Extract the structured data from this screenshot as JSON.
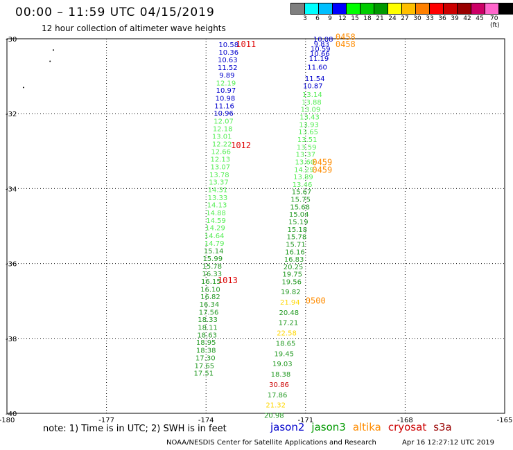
{
  "header": {
    "title": "00:00 – 11:59 UTC 04/15/2019",
    "subtitle": "12 hour collection of altimeter wave heights"
  },
  "colorbar": {
    "colors": [
      "#7f7f7f",
      "#00ffff",
      "#00bfff",
      "#0000ff",
      "#00ff00",
      "#00cc00",
      "#009900",
      "#ffff00",
      "#ffbf00",
      "#ff8000",
      "#ff0000",
      "#cc0000",
      "#990000",
      "#cc0066",
      "#ff66cc",
      "#000000"
    ],
    "tick_labels": [
      "3",
      "6",
      "9",
      "12",
      "15",
      "18",
      "21",
      "24",
      "27",
      "30",
      "33",
      "36",
      "39",
      "42",
      "45",
      "70 (ft)"
    ]
  },
  "chart_data": {
    "type": "scatter",
    "title": "00:00 – 11:59 UTC 04/15/2019",
    "subtitle": "12 hour collection of altimeter wave heights",
    "xlabel": "",
    "ylabel": "",
    "xlim": [
      -180,
      -165
    ],
    "ylim": [
      -40,
      -30
    ],
    "x_ticks": [
      "-180",
      "-177",
      "-174",
      "-171",
      "-168",
      "-165"
    ],
    "y_ticks": [
      "-30",
      "-32",
      "-34",
      "-36",
      "-38",
      "-40"
    ],
    "grid": true,
    "tracks": [
      {
        "name": "track 1",
        "time_labels": [
          {
            "text": "1011",
            "lon": -173.1,
            "lat": -30.15
          },
          {
            "text": "1012",
            "lon": -173.25,
            "lat": -32.85
          },
          {
            "text": "1013",
            "lon": -173.65,
            "lat": -36.45
          }
        ],
        "points": [
          {
            "lon": -173.32,
            "lat": -30.15,
            "value": "10.58",
            "color": "#0000cc"
          },
          {
            "lon": -173.32,
            "lat": -30.35,
            "value": "10.36",
            "color": "#0000cc"
          },
          {
            "lon": -173.35,
            "lat": -30.55,
            "value": "10.63",
            "color": "#0000cc"
          },
          {
            "lon": -173.35,
            "lat": -30.76,
            "value": "11.52",
            "color": "#0000cc"
          },
          {
            "lon": -173.37,
            "lat": -30.96,
            "value": "9.89",
            "color": "#0000cc"
          },
          {
            "lon": -173.4,
            "lat": -31.17,
            "value": "12.19",
            "color": "#55ee55"
          },
          {
            "lon": -173.4,
            "lat": -31.37,
            "value": "10.97",
            "color": "#0000cc"
          },
          {
            "lon": -173.42,
            "lat": -31.58,
            "value": "10.98",
            "color": "#0000cc"
          },
          {
            "lon": -173.45,
            "lat": -31.78,
            "value": "11.16",
            "color": "#0000cc"
          },
          {
            "lon": -173.47,
            "lat": -31.98,
            "value": "10.96",
            "color": "#0000cc"
          },
          {
            "lon": -173.47,
            "lat": -32.19,
            "value": "12.07",
            "color": "#55ee55"
          },
          {
            "lon": -173.5,
            "lat": -32.39,
            "value": "12.18",
            "color": "#55ee55"
          },
          {
            "lon": -173.52,
            "lat": -32.6,
            "value": "13.01",
            "color": "#55ee55"
          },
          {
            "lon": -173.52,
            "lat": -32.8,
            "value": "12.22",
            "color": "#55ee55"
          },
          {
            "lon": -173.55,
            "lat": -33.0,
            "value": "12.66",
            "color": "#55ee55"
          },
          {
            "lon": -173.57,
            "lat": -33.21,
            "value": "12.13",
            "color": "#55ee55"
          },
          {
            "lon": -173.57,
            "lat": -33.41,
            "value": "13.07",
            "color": "#55ee55"
          },
          {
            "lon": -173.6,
            "lat": -33.62,
            "value": "13.78",
            "color": "#55ee55"
          },
          {
            "lon": -173.62,
            "lat": -33.82,
            "value": "13.37",
            "color": "#55ee55"
          },
          {
            "lon": -173.65,
            "lat": -34.02,
            "value": "14.31",
            "color": "#55ee55"
          },
          {
            "lon": -173.65,
            "lat": -34.23,
            "value": "13.33",
            "color": "#55ee55"
          },
          {
            "lon": -173.67,
            "lat": -34.43,
            "value": "14.13",
            "color": "#55ee55"
          },
          {
            "lon": -173.7,
            "lat": -34.64,
            "value": "14.88",
            "color": "#55ee55"
          },
          {
            "lon": -173.7,
            "lat": -34.84,
            "value": "14.59",
            "color": "#55ee55"
          },
          {
            "lon": -173.72,
            "lat": -35.04,
            "value": "14.29",
            "color": "#55ee55"
          },
          {
            "lon": -173.75,
            "lat": -35.25,
            "value": "14.64",
            "color": "#55ee55"
          },
          {
            "lon": -173.75,
            "lat": -35.45,
            "value": "14.79",
            "color": "#55ee55"
          },
          {
            "lon": -173.77,
            "lat": -35.66,
            "value": "15.14",
            "color": "#229922"
          },
          {
            "lon": -173.8,
            "lat": -35.86,
            "value": "15.99",
            "color": "#229922"
          },
          {
            "lon": -173.82,
            "lat": -36.06,
            "value": "15.78",
            "color": "#229922"
          },
          {
            "lon": -173.82,
            "lat": -36.27,
            "value": "16.33",
            "color": "#229922"
          },
          {
            "lon": -173.85,
            "lat": -36.47,
            "value": "16.15",
            "color": "#229922"
          },
          {
            "lon": -173.87,
            "lat": -36.68,
            "value": "16.10",
            "color": "#229922"
          },
          {
            "lon": -173.87,
            "lat": -36.88,
            "value": "16.82",
            "color": "#229922"
          },
          {
            "lon": -173.9,
            "lat": -37.08,
            "value": "16.34",
            "color": "#229922"
          },
          {
            "lon": -173.92,
            "lat": -37.29,
            "value": "17.56",
            "color": "#229922"
          },
          {
            "lon": -173.95,
            "lat": -37.49,
            "value": "18.33",
            "color": "#229922"
          },
          {
            "lon": -173.95,
            "lat": -37.7,
            "value": "18.11",
            "color": "#229922"
          },
          {
            "lon": -173.97,
            "lat": -37.9,
            "value": "18.63",
            "color": "#229922"
          },
          {
            "lon": -174.0,
            "lat": -38.1,
            "value": "18.95",
            "color": "#229922"
          },
          {
            "lon": -174.0,
            "lat": -38.31,
            "value": "18.38",
            "color": "#229922"
          },
          {
            "lon": -174.02,
            "lat": -38.51,
            "value": "17.30",
            "color": "#229922"
          },
          {
            "lon": -174.05,
            "lat": -38.72,
            "value": "17.65",
            "color": "#229922"
          },
          {
            "lon": -174.07,
            "lat": -38.92,
            "value": "17.51",
            "color": "#229922"
          }
        ]
      },
      {
        "name": "track 2",
        "time_labels": [
          {
            "text": "0458",
            "lon": -170.1,
            "lat": -29.95
          },
          {
            "text": "0458",
            "lon": -170.1,
            "lat": -30.15
          },
          {
            "text": "0459",
            "lon": -170.8,
            "lat": -33.3
          },
          {
            "text": "0459",
            "lon": -170.8,
            "lat": -33.5
          },
          {
            "text": "0500",
            "lon": -171.0,
            "lat": -37.0
          }
        ],
        "points": [
          {
            "lon": -170.47,
            "lat": -30.0,
            "value": "10.08",
            "color": "#0000cc"
          },
          {
            "lon": -170.52,
            "lat": -30.13,
            "value": "9.83",
            "color": "#0000cc"
          },
          {
            "lon": -170.55,
            "lat": -30.26,
            "value": "10.59",
            "color": "#0000cc"
          },
          {
            "lon": -170.57,
            "lat": -30.39,
            "value": "10.66",
            "color": "#0000cc"
          },
          {
            "lon": -170.6,
            "lat": -30.52,
            "value": "11.19",
            "color": "#0000cc"
          },
          {
            "lon": -170.65,
            "lat": -30.75,
            "value": "11.60",
            "color": "#0000cc"
          },
          {
            "lon": -170.72,
            "lat": -31.05,
            "value": "11.54",
            "color": "#0000cc"
          },
          {
            "lon": -170.78,
            "lat": -31.25,
            "value": "10.87",
            "color": "#0000cc"
          },
          {
            "lon": -170.8,
            "lat": -31.48,
            "value": "13.14",
            "color": "#55ee55"
          },
          {
            "lon": -170.82,
            "lat": -31.68,
            "value": "13.88",
            "color": "#55ee55"
          },
          {
            "lon": -170.85,
            "lat": -31.88,
            "value": "13.09",
            "color": "#55ee55"
          },
          {
            "lon": -170.88,
            "lat": -32.08,
            "value": "13.43",
            "color": "#55ee55"
          },
          {
            "lon": -170.9,
            "lat": -32.28,
            "value": "13.93",
            "color": "#55ee55"
          },
          {
            "lon": -170.92,
            "lat": -32.48,
            "value": "13.65",
            "color": "#55ee55"
          },
          {
            "lon": -170.95,
            "lat": -32.68,
            "value": "13.51",
            "color": "#55ee55"
          },
          {
            "lon": -170.97,
            "lat": -32.88,
            "value": "13.59",
            "color": "#55ee55"
          },
          {
            "lon": -171.0,
            "lat": -33.08,
            "value": "13.37",
            "color": "#55ee55"
          },
          {
            "lon": -171.02,
            "lat": -33.28,
            "value": "13.60",
            "color": "#55ee55"
          },
          {
            "lon": -171.05,
            "lat": -33.48,
            "value": "14.29",
            "color": "#55ee55"
          },
          {
            "lon": -171.07,
            "lat": -33.68,
            "value": "13.89",
            "color": "#55ee55"
          },
          {
            "lon": -171.1,
            "lat": -33.88,
            "value": "13.46",
            "color": "#55ee55"
          },
          {
            "lon": -171.12,
            "lat": -34.08,
            "value": "15.67",
            "color": "#229922"
          },
          {
            "lon": -171.15,
            "lat": -34.28,
            "value": "15.75",
            "color": "#229922"
          },
          {
            "lon": -171.17,
            "lat": -34.48,
            "value": "15.68",
            "color": "#229922"
          },
          {
            "lon": -171.2,
            "lat": -34.68,
            "value": "15.04",
            "color": "#229922"
          },
          {
            "lon": -171.22,
            "lat": -34.88,
            "value": "15.19",
            "color": "#229922"
          },
          {
            "lon": -171.25,
            "lat": -35.08,
            "value": "15.18",
            "color": "#229922"
          },
          {
            "lon": -171.27,
            "lat": -35.28,
            "value": "15.78",
            "color": "#229922"
          },
          {
            "lon": -171.3,
            "lat": -35.48,
            "value": "15.71",
            "color": "#229922"
          },
          {
            "lon": -171.32,
            "lat": -35.68,
            "value": "16.16",
            "color": "#229922"
          },
          {
            "lon": -171.35,
            "lat": -35.88,
            "value": "16.83",
            "color": "#229922"
          },
          {
            "lon": -171.37,
            "lat": -36.08,
            "value": "20.25",
            "color": "#229922"
          },
          {
            "lon": -171.4,
            "lat": -36.28,
            "value": "19.75",
            "color": "#229922"
          },
          {
            "lon": -171.42,
            "lat": -36.48,
            "value": "19.56",
            "color": "#229922"
          },
          {
            "lon": -171.45,
            "lat": -36.75,
            "value": "19.82",
            "color": "#229922"
          },
          {
            "lon": -171.47,
            "lat": -37.02,
            "value": "21.94",
            "color": "#ffd700"
          },
          {
            "lon": -171.5,
            "lat": -37.3,
            "value": "20.48",
            "color": "#229922"
          },
          {
            "lon": -171.52,
            "lat": -37.57,
            "value": "17.21",
            "color": "#229922"
          },
          {
            "lon": -171.57,
            "lat": -37.85,
            "value": "22.58",
            "color": "#ffd700"
          },
          {
            "lon": -171.6,
            "lat": -38.12,
            "value": "18.65",
            "color": "#229922"
          },
          {
            "lon": -171.65,
            "lat": -38.4,
            "value": "19.45",
            "color": "#229922"
          },
          {
            "lon": -171.7,
            "lat": -38.67,
            "value": "19.03",
            "color": "#229922"
          },
          {
            "lon": -171.75,
            "lat": -38.95,
            "value": "18.38",
            "color": "#229922"
          },
          {
            "lon": -171.8,
            "lat": -39.22,
            "value": "30.86",
            "color": "#cc0000"
          },
          {
            "lon": -171.85,
            "lat": -39.5,
            "value": "17.86",
            "color": "#229922"
          },
          {
            "lon": -171.9,
            "lat": -39.77,
            "value": "21.32",
            "color": "#ffd700"
          },
          {
            "lon": -171.95,
            "lat": -40.05,
            "value": "20.98",
            "color": "#229922"
          }
        ]
      }
    ],
    "land_dots": [
      {
        "lon": -178.6,
        "lat": -30.3
      },
      {
        "lon": -178.7,
        "lat": -30.6
      },
      {
        "lon": -179.5,
        "lat": -31.3
      }
    ]
  },
  "note": "note:  1) Time is in UTC;  2) SWH is in feet",
  "legend": [
    {
      "label": "jason2",
      "color": "#0000cc"
    },
    {
      "label": "jason3",
      "color": "#009900"
    },
    {
      "label": "altika",
      "color": "#ff8c00"
    },
    {
      "label": "cryosat",
      "color": "#cc0000"
    },
    {
      "label": "s3a",
      "color": "#990000"
    }
  ],
  "footer": {
    "credit": "NOAA/NESDIS Center for Satellite Applications and Research",
    "date": "Apr 16 12:27:12 UTC 2019"
  }
}
